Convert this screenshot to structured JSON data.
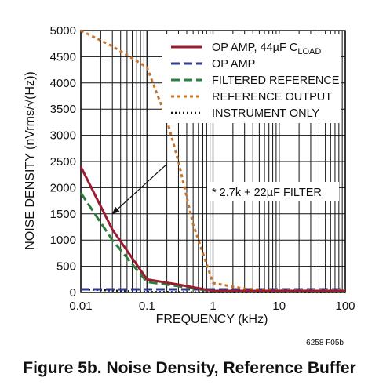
{
  "chart_data": {
    "type": "line",
    "xscale": "log",
    "xlim": [
      0.01,
      100
    ],
    "ylim": [
      0,
      5000
    ],
    "xlabel": "FREQUENCY (kHz)",
    "ylabel": "NOISE DENSITY (nVrms/√(Hz))",
    "xticks": [
      0.01,
      0.1,
      1,
      10,
      100
    ],
    "xtick_labels": [
      "0.01",
      "0.1",
      "1",
      "10",
      "100"
    ],
    "yticks": [
      0,
      500,
      1000,
      1500,
      2000,
      2500,
      3000,
      3500,
      4000,
      4500,
      5000
    ],
    "ytick_labels": [
      "0",
      "500",
      "1000",
      "1500",
      "2000",
      "2500",
      "3000",
      "3500",
      "4000",
      "4500",
      "5000"
    ],
    "grid": true,
    "legend_position": "top-right",
    "series": [
      {
        "name": "OP AMP, 44µF C",
        "name_sub": "LOAD",
        "color": "#9b1b30",
        "dash": "solid",
        "x": [
          0.01,
          0.03,
          0.1,
          0.3,
          1,
          10,
          100
        ],
        "y": [
          2400,
          1200,
          250,
          150,
          30,
          30,
          30
        ]
      },
      {
        "name": "OP AMP",
        "color": "#2e3a8c",
        "dash": "dashed",
        "x": [
          0.01,
          0.1,
          1,
          10,
          100
        ],
        "y": [
          60,
          60,
          60,
          60,
          60
        ]
      },
      {
        "name": "FILTERED REFERENCE",
        "color": "#2e7d3c",
        "dash": "dashed",
        "x": [
          0.01,
          0.03,
          0.1,
          0.3,
          1,
          10,
          100
        ],
        "y": [
          1900,
          1000,
          200,
          120,
          20,
          20,
          20
        ]
      },
      {
        "name": "REFERENCE OUTPUT",
        "color": "#c8732a",
        "dash": "dotted",
        "x": [
          0.01,
          0.03,
          0.1,
          0.2,
          0.3,
          0.5,
          1,
          3,
          10,
          100
        ],
        "y": [
          5000,
          4700,
          4300,
          3300,
          2500,
          1300,
          180,
          70,
          40,
          40
        ]
      },
      {
        "name": "INSTRUMENT ONLY",
        "color": "#111111",
        "dash": "dotted-fine",
        "x": [
          0.01,
          0.1,
          1,
          10,
          100
        ],
        "y": [
          60,
          10,
          5,
          5,
          5
        ]
      }
    ],
    "annotation": {
      "text": "* 2.7k + 22µF FILTER",
      "arrow_from": [
        0.2,
        2450
      ],
      "arrow_to": [
        0.03,
        1500
      ]
    },
    "figure_code": "6258 F05b"
  },
  "caption": "Figure 5b. Noise Density, Reference Buffer"
}
